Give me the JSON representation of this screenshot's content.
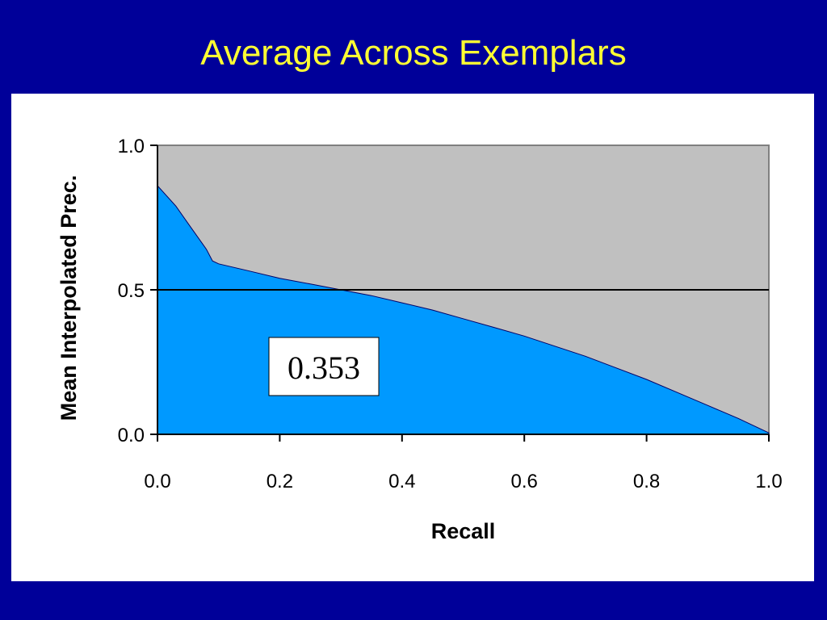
{
  "slide": {
    "title": "Average Across Exemplars",
    "background_color": "#000099",
    "title_color": "#ffff33"
  },
  "chart_data": {
    "type": "area",
    "xlabel": "Recall",
    "ylabel": "Mean Interpolated Prec.",
    "xlim": [
      0,
      1
    ],
    "ylim": [
      0,
      1
    ],
    "x_ticks": [
      "0.0",
      "0.2",
      "0.4",
      "0.6",
      "0.8",
      "1.0"
    ],
    "y_ticks": [
      "0.0",
      "0.5",
      "1.0"
    ],
    "grid": "horizontal",
    "legend": "none",
    "plot_background": "#c0c0c0",
    "fill_color": "#0099ff",
    "series": [
      {
        "x": [
          0.0,
          0.03,
          0.05,
          0.08,
          0.09,
          0.1,
          0.15,
          0.2,
          0.25,
          0.3,
          0.35,
          0.4,
          0.45,
          0.5,
          0.55,
          0.6,
          0.65,
          0.7,
          0.75,
          0.8,
          0.85,
          0.9,
          0.95,
          1.0
        ],
        "values": [
          0.86,
          0.79,
          0.73,
          0.64,
          0.6,
          0.59,
          0.565,
          0.54,
          0.52,
          0.5,
          0.48,
          0.455,
          0.43,
          0.4,
          0.37,
          0.34,
          0.305,
          0.27,
          0.23,
          0.19,
          0.145,
          0.1,
          0.055,
          0.005
        ]
      }
    ],
    "annotation": "0.353"
  }
}
